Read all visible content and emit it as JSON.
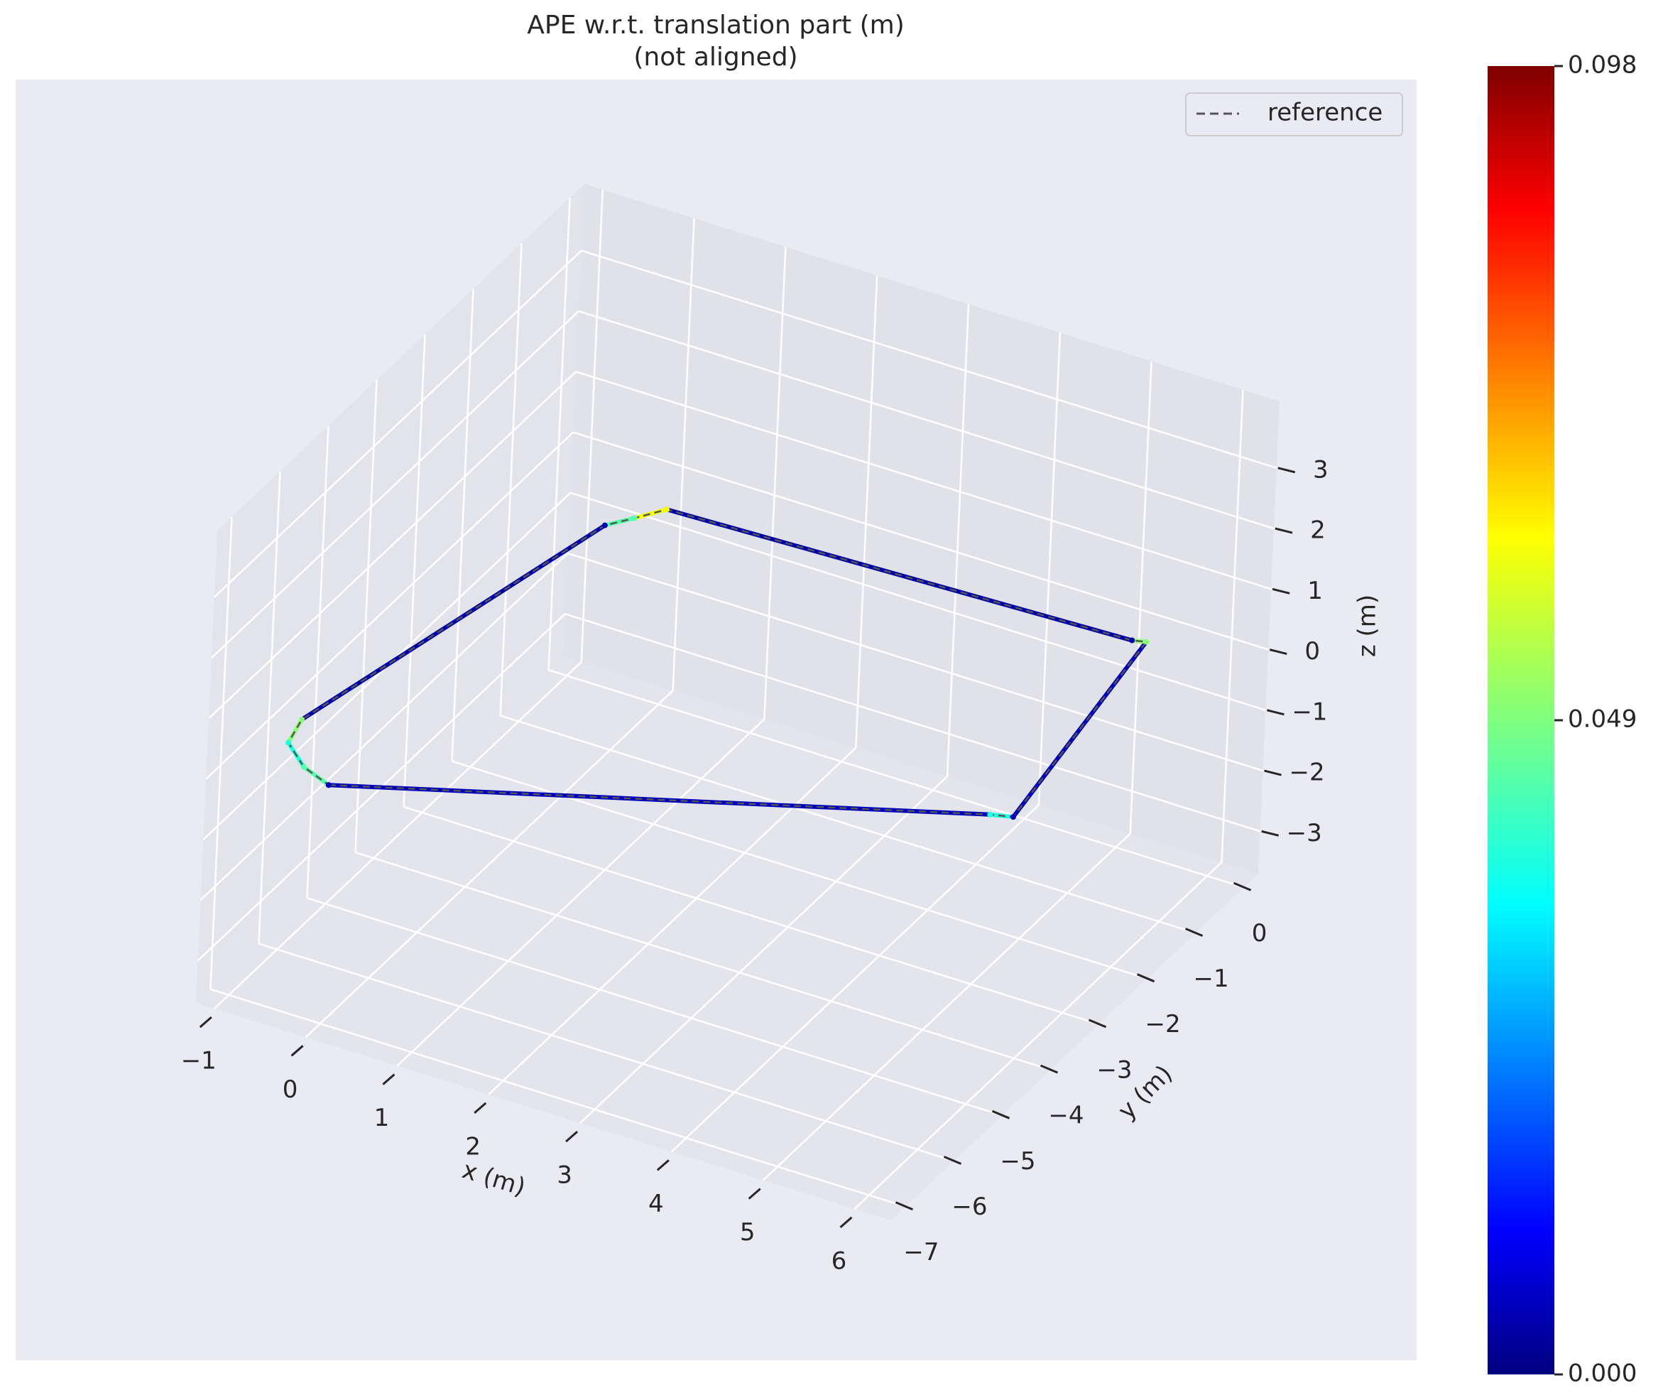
{
  "chart_data": {
    "type": "trajectory3d",
    "title": "APE w.r.t. translation part (m)",
    "subtitle": "(not aligned)",
    "xlabel": "x (m)",
    "ylabel": "y (m)",
    "zlabel": "z (m)",
    "xlim": [
      -1.2,
      6.4
    ],
    "ylim": [
      -7.3,
      0.3
    ],
    "zlim": [
      -3.7,
      4.1
    ],
    "xticks": [
      {
        "value": -1,
        "label": "−1"
      },
      0,
      1,
      2,
      3,
      4,
      5,
      6
    ],
    "yticks": [
      {
        "value": -7,
        "label": "−7"
      },
      {
        "value": -6,
        "label": "−6"
      },
      {
        "value": -5,
        "label": "−5"
      },
      {
        "value": -4,
        "label": "−4"
      },
      {
        "value": -3,
        "label": "−3"
      },
      {
        "value": -2,
        "label": "−2"
      },
      {
        "value": -1,
        "label": "−1"
      },
      0
    ],
    "zticks": [
      {
        "value": -3,
        "label": "−3"
      },
      {
        "value": -2,
        "label": "−2"
      },
      {
        "value": -1,
        "label": "−1"
      },
      0,
      1,
      2,
      3
    ],
    "grid": true,
    "legend_position": "upper right",
    "series": [
      {
        "name": "reference",
        "color": "#555555",
        "x": [
          -0.14,
          5.55,
          5.76,
          5.33,
          5.2,
          0.24,
          0.05,
          -0.13,
          -0.93,
          -0.84,
          -0.5,
          -0.14
        ],
        "y": [
          -6.77,
          -3.85,
          -3.77,
          -0.2,
          -0.25,
          -0.49,
          -0.8,
          -1.07,
          -5.83,
          -6.28,
          -6.6,
          -6.77
        ],
        "z": [
          0,
          0,
          0,
          0,
          0,
          0,
          0,
          0,
          0,
          0,
          0,
          0
        ]
      }
    ],
    "trajectory": {
      "x": [
        -0.14,
        5.55,
        5.76,
        5.33,
        5.2,
        0.24,
        0.05,
        -0.13,
        -0.93,
        -0.84,
        -0.5,
        -0.14
      ],
      "y": [
        -6.77,
        -3.85,
        -3.77,
        -0.2,
        -0.25,
        -0.49,
        -0.8,
        -1.07,
        -5.83,
        -6.28,
        -6.6,
        -6.77
      ],
      "z": [
        0,
        0,
        0,
        0,
        0,
        0,
        0,
        0,
        0,
        0,
        0,
        0
      ],
      "error": [
        0.006,
        0.04,
        0.005,
        0.05,
        0.004,
        0.06,
        0.045,
        0.004,
        0.05,
        0.04,
        0.045,
        0.006
      ]
    },
    "colorbar": {
      "colormap": "jet",
      "lim": [
        0,
        0.098
      ],
      "ticks": [
        {
          "value": 0,
          "label": "0.000"
        },
        0.049,
        0.098
      ]
    }
  }
}
